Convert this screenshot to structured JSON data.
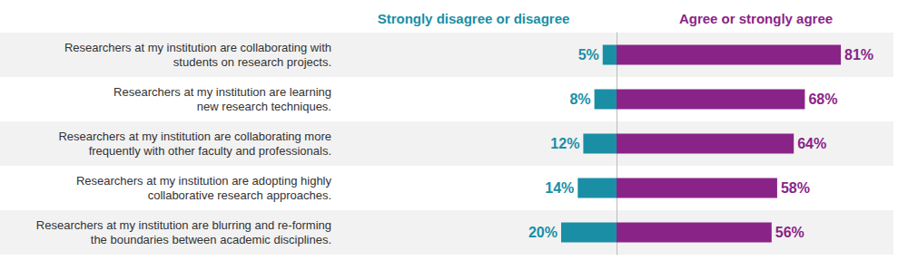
{
  "chart_data": {
    "type": "bar",
    "orientation": "horizontal",
    "categories": [
      "Researchers at my institution are collaborating with\nstudents on research projects.",
      "Researchers at my institution are learning\nnew research techniques.",
      "Researchers at my institution are collaborating more\nfrequently with other faculty and professionals.",
      "Researchers at my institution are adopting highly\ncollaborative research approaches.",
      "Researchers at my institution are blurring and re-forming\nthe boundaries between academic disciplines."
    ],
    "series": [
      {
        "name": "Strongly disagree or disagree",
        "color": "#1a8ea5",
        "values": [
          5,
          8,
          12,
          14,
          20
        ],
        "value_labels": [
          "5%",
          "8%",
          "12%",
          "14%",
          "20%"
        ]
      },
      {
        "name": "Agree or strongly agree",
        "color": "#8a2388",
        "values": [
          81,
          68,
          64,
          58,
          56
        ],
        "value_labels": [
          "81%",
          "68%",
          "64%",
          "58%",
          "56%"
        ]
      }
    ],
    "xlim": [
      0,
      100
    ],
    "data_labels": true,
    "tick_labels": false,
    "grid": false
  }
}
